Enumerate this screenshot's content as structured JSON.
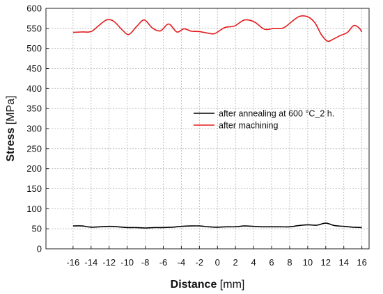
{
  "chart_data": {
    "type": "line",
    "xlabel_bold": "Distance",
    "xlabel_unit": " [mm]",
    "ylabel_bold": "Stress",
    "ylabel_unit": " [MPa]",
    "xlim": [
      -19,
      16.8
    ],
    "ylim": [
      0,
      600
    ],
    "x_ticks": [
      -16,
      -14,
      -12,
      -10,
      -8,
      -6,
      -4,
      -2,
      0,
      2,
      4,
      6,
      8,
      10,
      12,
      14,
      16
    ],
    "y_ticks": [
      0,
      50,
      100,
      150,
      200,
      250,
      300,
      350,
      400,
      450,
      500,
      550,
      600
    ],
    "grid": true,
    "legend_position": "center-right",
    "series": [
      {
        "name": "after annealing at 600 °C_2 h.",
        "color": "#000000",
        "x": [
          -16,
          -15,
          -14,
          -13,
          -12,
          -11,
          -10,
          -9,
          -8,
          -7,
          -6,
          -5,
          -4,
          -3,
          -2,
          -1,
          0,
          1,
          2,
          3,
          4,
          5,
          6,
          7,
          8,
          9,
          10,
          11,
          12,
          13,
          14,
          15,
          16
        ],
        "y": [
          57,
          57,
          54,
          55,
          56,
          55,
          53,
          53,
          52,
          53,
          53,
          54,
          56,
          57,
          57,
          55,
          54,
          55,
          55,
          57,
          56,
          55,
          55,
          55,
          55,
          58,
          60,
          59,
          64,
          58,
          56,
          54,
          53
        ]
      },
      {
        "name": "after machining",
        "color": "#e41a1c",
        "x": [
          -16,
          -15,
          -14,
          -13.2,
          -12.3,
          -11.5,
          -10.5,
          -9.8,
          -8.9,
          -8.1,
          -7.2,
          -6.3,
          -5.4,
          -4.5,
          -3.7,
          -2.9,
          -2,
          -1,
          -0.3,
          0.8,
          1.9,
          3,
          4.1,
          5.2,
          6.3,
          7.3,
          8.3,
          9.1,
          10,
          10.8,
          11.5,
          12.2,
          12.9,
          13.6,
          14.4,
          15.1,
          15.7,
          16
        ],
        "y": [
          540,
          541,
          542,
          556,
          571,
          568,
          545,
          535,
          556,
          571,
          551,
          544,
          561,
          541,
          549,
          543,
          542,
          538,
          537,
          552,
          556,
          571,
          566,
          548,
          550,
          551,
          568,
          580,
          579,
          564,
          535,
          518,
          524,
          532,
          540,
          557,
          551,
          541
        ]
      }
    ]
  }
}
